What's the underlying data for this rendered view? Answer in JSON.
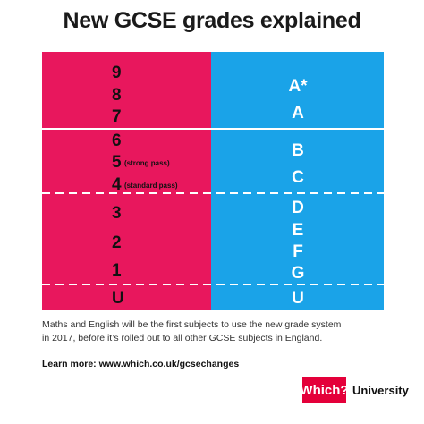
{
  "title": "New GCSE grades explained",
  "new_grades": [
    {
      "grade": "9",
      "note": ""
    },
    {
      "grade": "8",
      "note": ""
    },
    {
      "grade": "7",
      "note": ""
    },
    {
      "grade": "6",
      "note": ""
    },
    {
      "grade": "5",
      "note": "(strong pass)"
    },
    {
      "grade": "4",
      "note": "(standard pass)"
    },
    {
      "grade": "3",
      "note": ""
    },
    {
      "grade": "2",
      "note": ""
    },
    {
      "grade": "1",
      "note": ""
    },
    {
      "grade": "U",
      "note": ""
    }
  ],
  "old_grades": [
    "A*",
    "A",
    "B",
    "C",
    "D",
    "E",
    "F",
    "G",
    "U"
  ],
  "colors": {
    "new_panel": "#e8175d",
    "old_panel": "#1aa3e8",
    "logo": "#e4003a"
  },
  "caption": {
    "line1": "Maths and English will be the first subjects to use the new grade system",
    "line2": "in 2017, before it’s rolled out to all other GCSE subjects in England.",
    "learn_more": "Learn more: www.which.co.uk/gcsechanges"
  },
  "brand": {
    "logo_text": "Which?",
    "label": "University"
  }
}
